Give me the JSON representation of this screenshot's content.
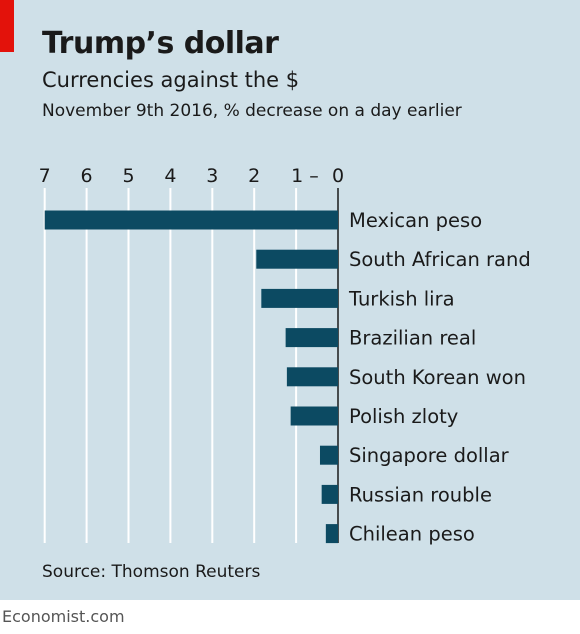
{
  "title": "Trump’s dollar",
  "subtitle": "Currencies against the $",
  "note": "November 9th 2016, % decrease on a day earlier",
  "source": "Source: Thomson Reuters",
  "footer": "Economist.com",
  "colors": {
    "bar": "#0c4a62",
    "background": "#cfe0e8",
    "accent": "#e3120b"
  },
  "chart_data": {
    "type": "bar",
    "orientation": "horizontal",
    "categories": [
      "Mexican peso",
      "South African rand",
      "Turkish lira",
      "Brazilian real",
      "South Korean won",
      "Polish zloty",
      "Singapore dollar",
      "Russian rouble",
      "Chilean peso"
    ],
    "values": [
      7.0,
      1.95,
      1.83,
      1.25,
      1.22,
      1.13,
      0.43,
      0.39,
      0.29
    ],
    "xlim": [
      7,
      0
    ],
    "xticks": [
      7,
      6,
      5,
      4,
      3,
      2,
      1,
      0
    ],
    "xtick_labels": [
      "7",
      "6",
      "5",
      "4",
      "3",
      "2",
      "1 –",
      "0"
    ],
    "xlabel": "",
    "ylabel": "",
    "grid": true,
    "axis_reversed": true
  }
}
